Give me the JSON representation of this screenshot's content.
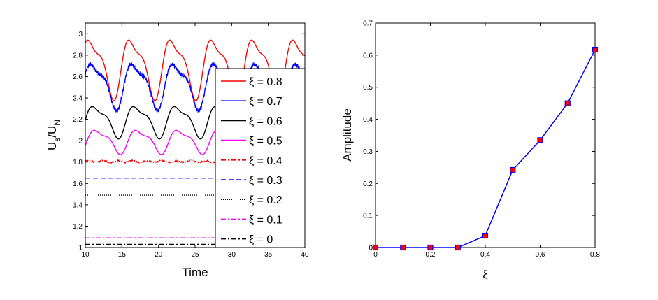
{
  "chart_data": [
    {
      "type": "line",
      "id": "left",
      "xlabel": "Time",
      "ylabel_main": "U",
      "ylabel_sub1": "s",
      "ylabel_mid": "/U",
      "ylabel_sub2": "N",
      "xlim": [
        10,
        40
      ],
      "ylim": [
        1,
        3.1
      ],
      "xticks": [
        10,
        15,
        20,
        25,
        30,
        35,
        40
      ],
      "yticks": [
        1,
        1.2,
        1.4,
        1.6,
        1.8,
        2,
        2.2,
        2.4,
        2.6,
        2.8,
        3
      ],
      "series": [
        {
          "name": "ξ = 0.8",
          "color": "#ff0000",
          "dash": "",
          "mean": 2.7,
          "amp": 0.3,
          "period": 5.6,
          "phase": 1.9,
          "sharp": 1.6
        },
        {
          "name": "ξ = 0.7",
          "color": "#0000ff",
          "dash": "",
          "mean": 2.53,
          "amp": 0.23,
          "period": 5.6,
          "phase": 1.5,
          "sharp": 1.4
        },
        {
          "name": "ξ = 0.6",
          "color": "#000000",
          "dash": "",
          "mean": 2.19,
          "amp": 0.16,
          "period": 5.6,
          "phase": 1.2,
          "sharp": 1.8
        },
        {
          "name": "ξ = 0.5",
          "color": "#ff00ff",
          "dash": "",
          "mean": 2.0,
          "amp": 0.12,
          "period": 5.6,
          "phase": 0.9,
          "sharp": 1.6
        },
        {
          "name": "ξ = 0.4",
          "color": "#ff0000",
          "dash": "7,3,2,3",
          "mean": 1.805,
          "amp": 0.01,
          "period": 2.0,
          "phase": 0.0,
          "sharp": 0
        },
        {
          "name": "ξ = 0.3",
          "color": "#0000ff",
          "dash": "7,4",
          "mean": 1.65,
          "amp": 0,
          "period": 1,
          "phase": 0,
          "sharp": 0
        },
        {
          "name": "ξ = 0.2",
          "color": "#000000",
          "dash": "1,2",
          "mean": 1.49,
          "amp": 0,
          "period": 1,
          "phase": 0,
          "sharp": 0
        },
        {
          "name": "ξ = 0.1",
          "color": "#ff00ff",
          "dash": "7,3,2,3",
          "mean": 1.09,
          "amp": 0,
          "period": 1,
          "phase": 0,
          "sharp": 0
        },
        {
          "name": "ξ = 0",
          "color": "#000000",
          "dash": "7,3,2,3",
          "mean": 1.03,
          "amp": 0,
          "period": 1,
          "phase": 0,
          "sharp": 0
        }
      ],
      "legend_location": "right"
    },
    {
      "type": "line",
      "id": "right",
      "xlabel": "ξ",
      "ylabel": "Amplitude",
      "xlim": [
        0,
        0.8
      ],
      "ylim": [
        0,
        0.7
      ],
      "xticks": [
        0,
        0.2,
        0.4,
        0.6,
        0.8
      ],
      "yticks": [
        0,
        0.1,
        0.2,
        0.3,
        0.4,
        0.5,
        0.6,
        0.7
      ],
      "x": [
        0,
        0.1,
        0.2,
        0.3,
        0.4,
        0.5,
        0.6,
        0.7,
        0.8
      ],
      "y": [
        0,
        0,
        0,
        0,
        0.037,
        0.242,
        0.335,
        0.45,
        0.617
      ],
      "line_color": "#0000ff",
      "marker_color": "#ff0000"
    }
  ]
}
